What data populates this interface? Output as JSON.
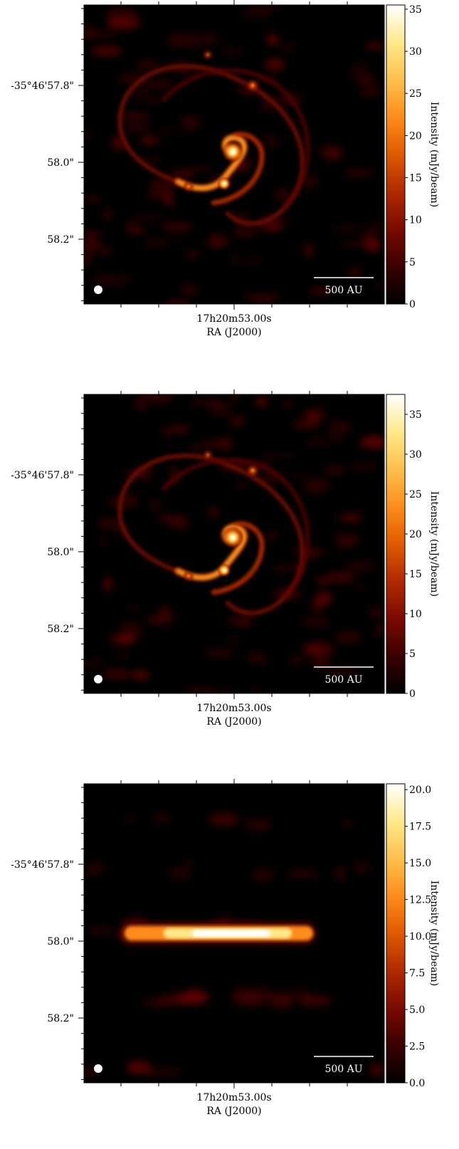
{
  "panels": [
    {
      "x_tick_label": "17h20m53.00s",
      "x_axis_label": "RA (J2000)",
      "y_tick_labels": [
        "-35°46'57.8\"",
        "58.0\"",
        "58.2\""
      ],
      "colorbar_label": "Intensity (mJy/beam)",
      "colorbar_ticks": [
        "35",
        "30",
        "25",
        "20",
        "15",
        "10",
        "5",
        "0"
      ],
      "colorbar_range": [
        0,
        35.5
      ],
      "scale_bar_label": "500 AU",
      "structure": "spiral"
    },
    {
      "x_tick_label": "17h20m53.00s",
      "x_axis_label": "RA (J2000)",
      "y_tick_labels": [
        "-35°46'57.8\"",
        "58.0\"",
        "58.2\""
      ],
      "colorbar_label": "Intensity (mJy/beam)",
      "colorbar_ticks": [
        "35",
        "30",
        "25",
        "20",
        "15",
        "10",
        "5",
        "0"
      ],
      "colorbar_range": [
        0,
        37.5
      ],
      "scale_bar_label": "500 AU",
      "structure": "spiral"
    },
    {
      "x_tick_label": "17h20m53.00s",
      "x_axis_label": "RA (J2000)",
      "y_tick_labels": [
        "-35°46'57.8\"",
        "58.0\"",
        "58.2\""
      ],
      "colorbar_label": "Intensity (mJy/beam)",
      "colorbar_ticks": [
        "20.0",
        "17.5",
        "15.0",
        "12.5",
        "10.0",
        "7.5",
        "5.0",
        "2.5",
        "0.0"
      ],
      "colorbar_range": [
        0,
        20.4
      ],
      "scale_bar_label": "500 AU",
      "structure": "edge-on"
    }
  ],
  "colors": {
    "background": "#000000",
    "colormap": [
      "#000000",
      "#3a0000",
      "#7a0a00",
      "#b02a00",
      "#e05a00",
      "#ff8c1a",
      "#ffc04d",
      "#ffe98a",
      "#ffffff"
    ],
    "annotation": "#ffffff"
  }
}
